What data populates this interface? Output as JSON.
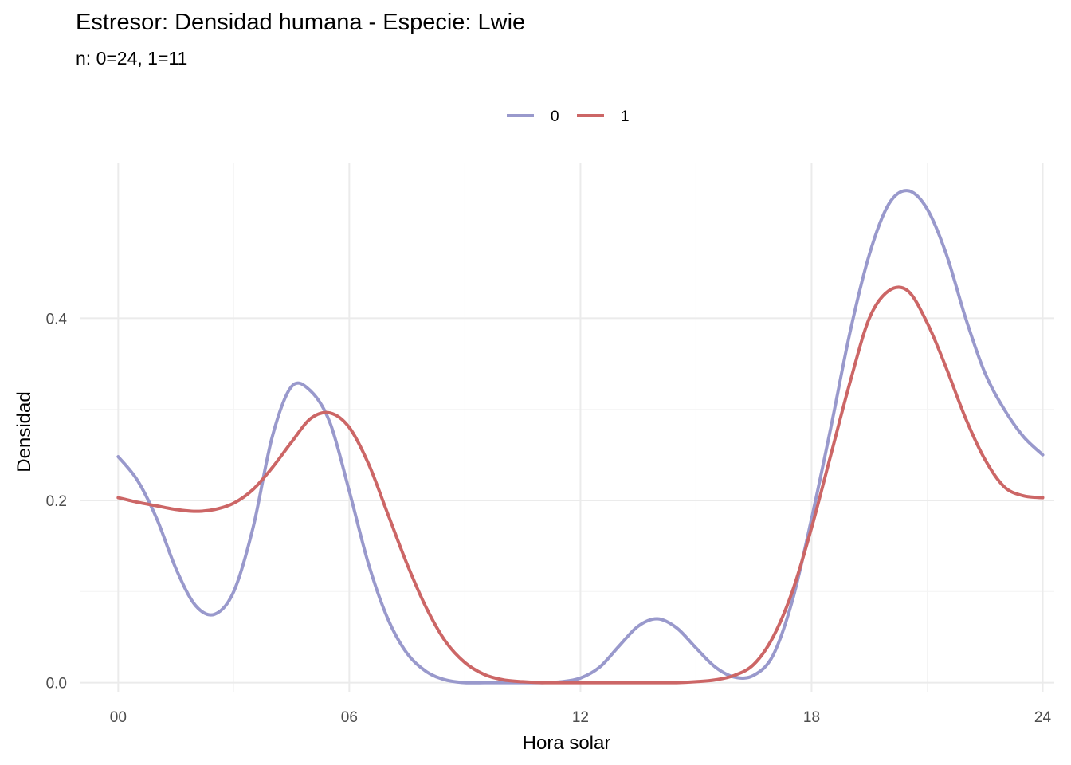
{
  "chart_data": {
    "type": "line",
    "title": "Estresor: Densidad humana - Especie:  Lwie",
    "subtitle": "n:  0=24, 1=11",
    "xlabel": "Hora solar",
    "ylabel": "Densidad",
    "xlim": [
      -1,
      24.3
    ],
    "ylim": [
      -0.01,
      0.57
    ],
    "x_ticks": [
      0,
      6,
      12,
      18,
      24
    ],
    "x_tick_labels": [
      "00",
      "06",
      "12",
      "18",
      "24"
    ],
    "y_ticks": [
      0.0,
      0.2,
      0.4
    ],
    "y_tick_labels": [
      "0.0",
      "0.2",
      "0.4"
    ],
    "grid": true,
    "legend_position": "top",
    "series": [
      {
        "name": "0",
        "color": "#9999cc",
        "x": [
          0,
          0.5,
          1,
          1.5,
          2,
          2.5,
          3,
          3.5,
          4,
          4.5,
          5,
          5.5,
          6,
          6.5,
          7,
          7.5,
          8,
          8.5,
          9,
          9.5,
          10,
          10.5,
          11,
          11.5,
          12,
          12.5,
          13,
          13.5,
          14,
          14.5,
          15,
          15.5,
          16,
          16.5,
          17,
          17.5,
          18,
          18.5,
          19,
          19.5,
          20,
          20.5,
          21,
          21.5,
          22,
          22.5,
          23,
          23.5,
          24
        ],
        "y": [
          0.248,
          0.222,
          0.18,
          0.125,
          0.085,
          0.075,
          0.1,
          0.17,
          0.27,
          0.325,
          0.32,
          0.285,
          0.21,
          0.13,
          0.07,
          0.032,
          0.012,
          0.003,
          0.0,
          0.0,
          0.0,
          0.0,
          0.0,
          0.001,
          0.005,
          0.017,
          0.04,
          0.062,
          0.07,
          0.06,
          0.038,
          0.017,
          0.006,
          0.008,
          0.03,
          0.09,
          0.18,
          0.28,
          0.385,
          0.47,
          0.525,
          0.54,
          0.52,
          0.47,
          0.4,
          0.34,
          0.3,
          0.27,
          0.25
        ]
      },
      {
        "name": "1",
        "color": "#cc6666",
        "x": [
          0,
          0.5,
          1,
          1.5,
          2,
          2.5,
          3,
          3.5,
          4,
          4.5,
          5,
          5.5,
          6,
          6.5,
          7,
          7.5,
          8,
          8.5,
          9,
          9.5,
          10,
          10.5,
          11,
          11.5,
          12,
          12.5,
          13,
          13.5,
          14,
          14.5,
          15,
          15.5,
          16,
          16.5,
          17,
          17.5,
          18,
          18.5,
          19,
          19.5,
          20,
          20.5,
          21,
          21.5,
          22,
          22.5,
          23,
          23.5,
          24
        ],
        "y": [
          0.203,
          0.198,
          0.194,
          0.19,
          0.188,
          0.19,
          0.197,
          0.212,
          0.236,
          0.264,
          0.29,
          0.296,
          0.28,
          0.24,
          0.185,
          0.13,
          0.082,
          0.045,
          0.022,
          0.009,
          0.003,
          0.001,
          0.0,
          0.0,
          0.0,
          0.0,
          0.0,
          0.0,
          0.0,
          0.0,
          0.001,
          0.003,
          0.008,
          0.02,
          0.05,
          0.1,
          0.17,
          0.25,
          0.33,
          0.4,
          0.43,
          0.43,
          0.395,
          0.345,
          0.29,
          0.245,
          0.215,
          0.205,
          0.203
        ]
      }
    ]
  }
}
